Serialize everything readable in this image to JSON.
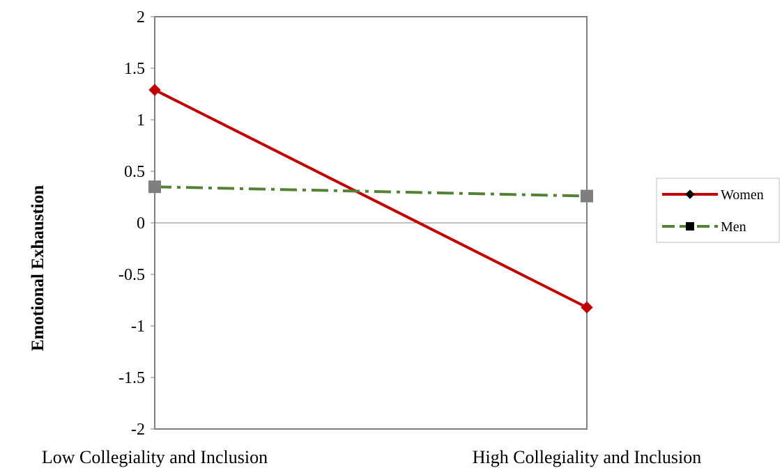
{
  "chart_data": {
    "type": "line",
    "categories": [
      "Low Collegiality and Inclusion",
      "High Collegiality and Inclusion"
    ],
    "ylabel": "Emotional Exhaustion",
    "ylim": [
      -2,
      2
    ],
    "yticks": [
      2,
      1.5,
      1,
      0.5,
      0,
      -0.5,
      -1,
      -1.5,
      -2
    ],
    "grid": false,
    "legend_position": "right",
    "series": [
      {
        "name": "Women",
        "values": [
          1.29,
          -0.82
        ],
        "color": "#c00000",
        "line_style": "solid",
        "marker": "diamond",
        "legend_marker_color": "#000000"
      },
      {
        "name": "Men",
        "values": [
          0.35,
          0.26
        ],
        "color": "#548235",
        "line_style": "dash-dot",
        "marker": "square",
        "marker_color": "#7f7f7f",
        "legend_marker_color": "#000000"
      }
    ],
    "colors": {
      "axis": "#7f7f7f",
      "zero_line": "#808080"
    }
  }
}
